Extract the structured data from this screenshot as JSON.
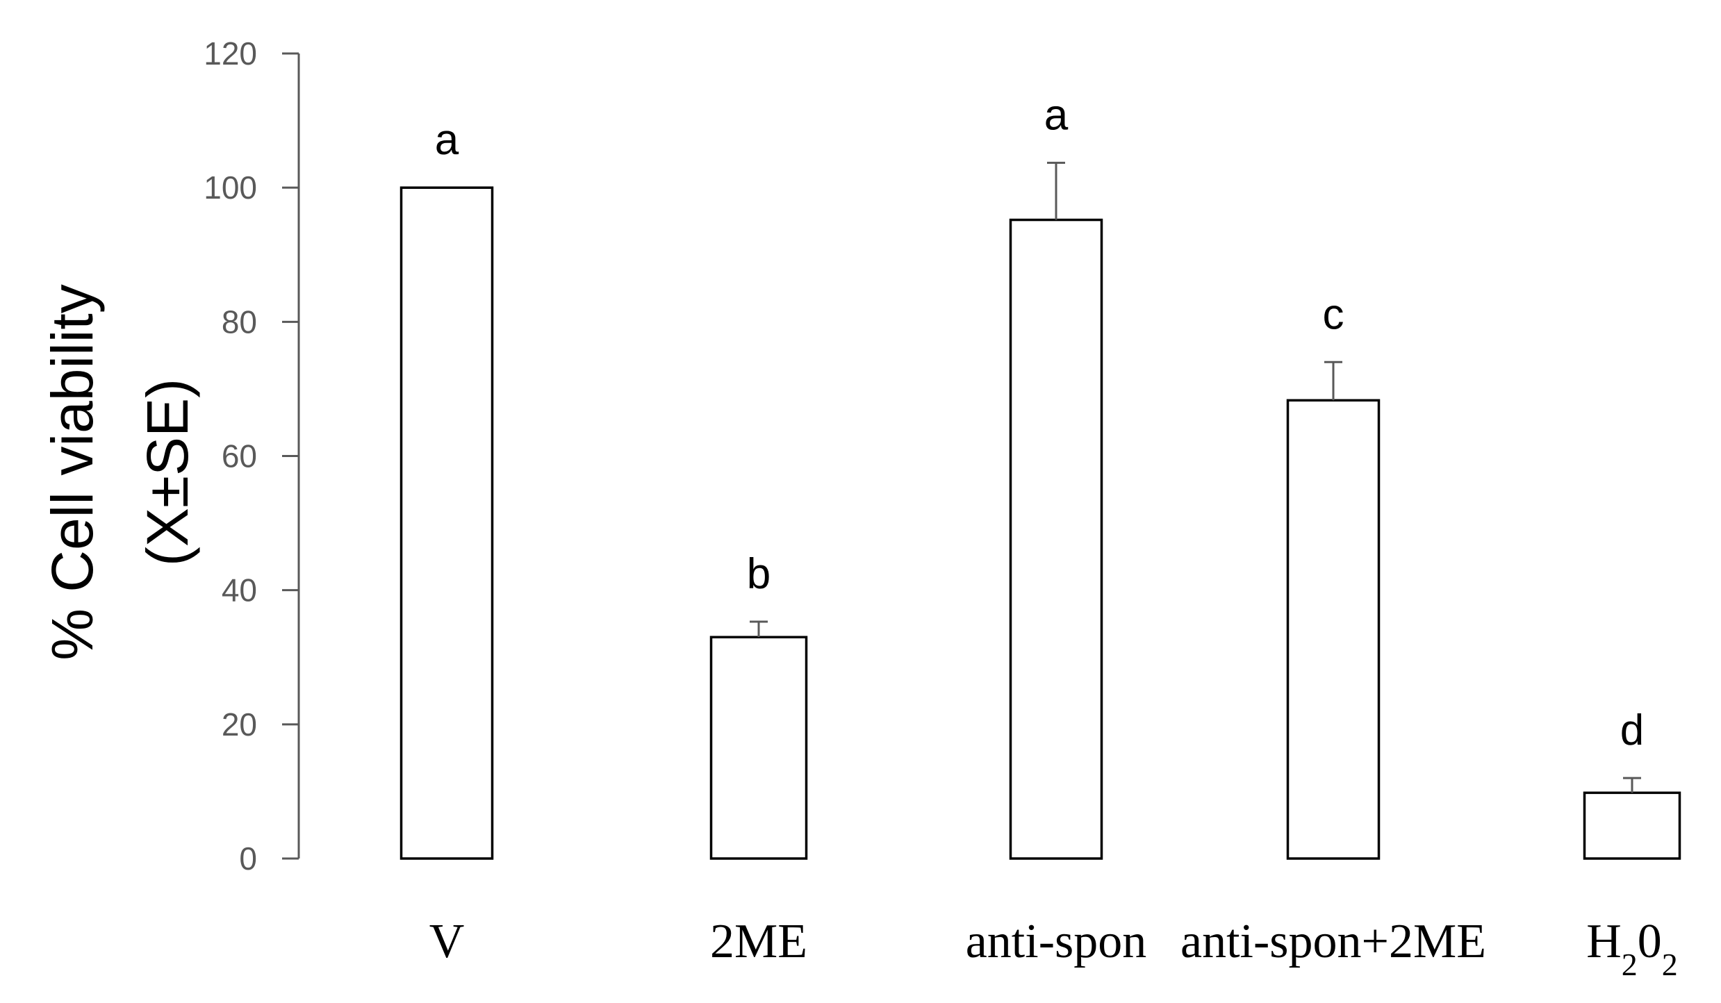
{
  "chart_data": {
    "type": "bar",
    "title": "",
    "xlabel": "",
    "ylabel_lines": [
      "% Cell viability",
      "(X±SE)"
    ],
    "ylim": [
      0,
      120
    ],
    "yticks": [
      0,
      20,
      40,
      60,
      80,
      100,
      120
    ],
    "yticks_text": [
      "0",
      "20",
      "40",
      "60",
      "80",
      "100",
      "120"
    ],
    "grid": false,
    "legend": "none",
    "categories": [
      {
        "label": "V",
        "sub": ""
      },
      {
        "label": "2ME",
        "sub": ""
      },
      {
        "label": "anti-spon",
        "sub": ""
      },
      {
        "label": "anti-spon+2ME",
        "sub": ""
      },
      {
        "label": "H₂0₂",
        "parts": [
          "H",
          "2",
          "0",
          "2"
        ]
      }
    ],
    "values": [
      100,
      33,
      95.2,
      68.3,
      9.8
    ],
    "errors": [
      0,
      2.3,
      8.5,
      5.7,
      2.2
    ],
    "significance_labels": [
      "a",
      "b",
      "a",
      "c",
      "d"
    ],
    "colors": {
      "bar_fill": "#ffffff",
      "bar_stroke": "#000000",
      "axis": "#595959",
      "error_bar": "#595959"
    }
  }
}
